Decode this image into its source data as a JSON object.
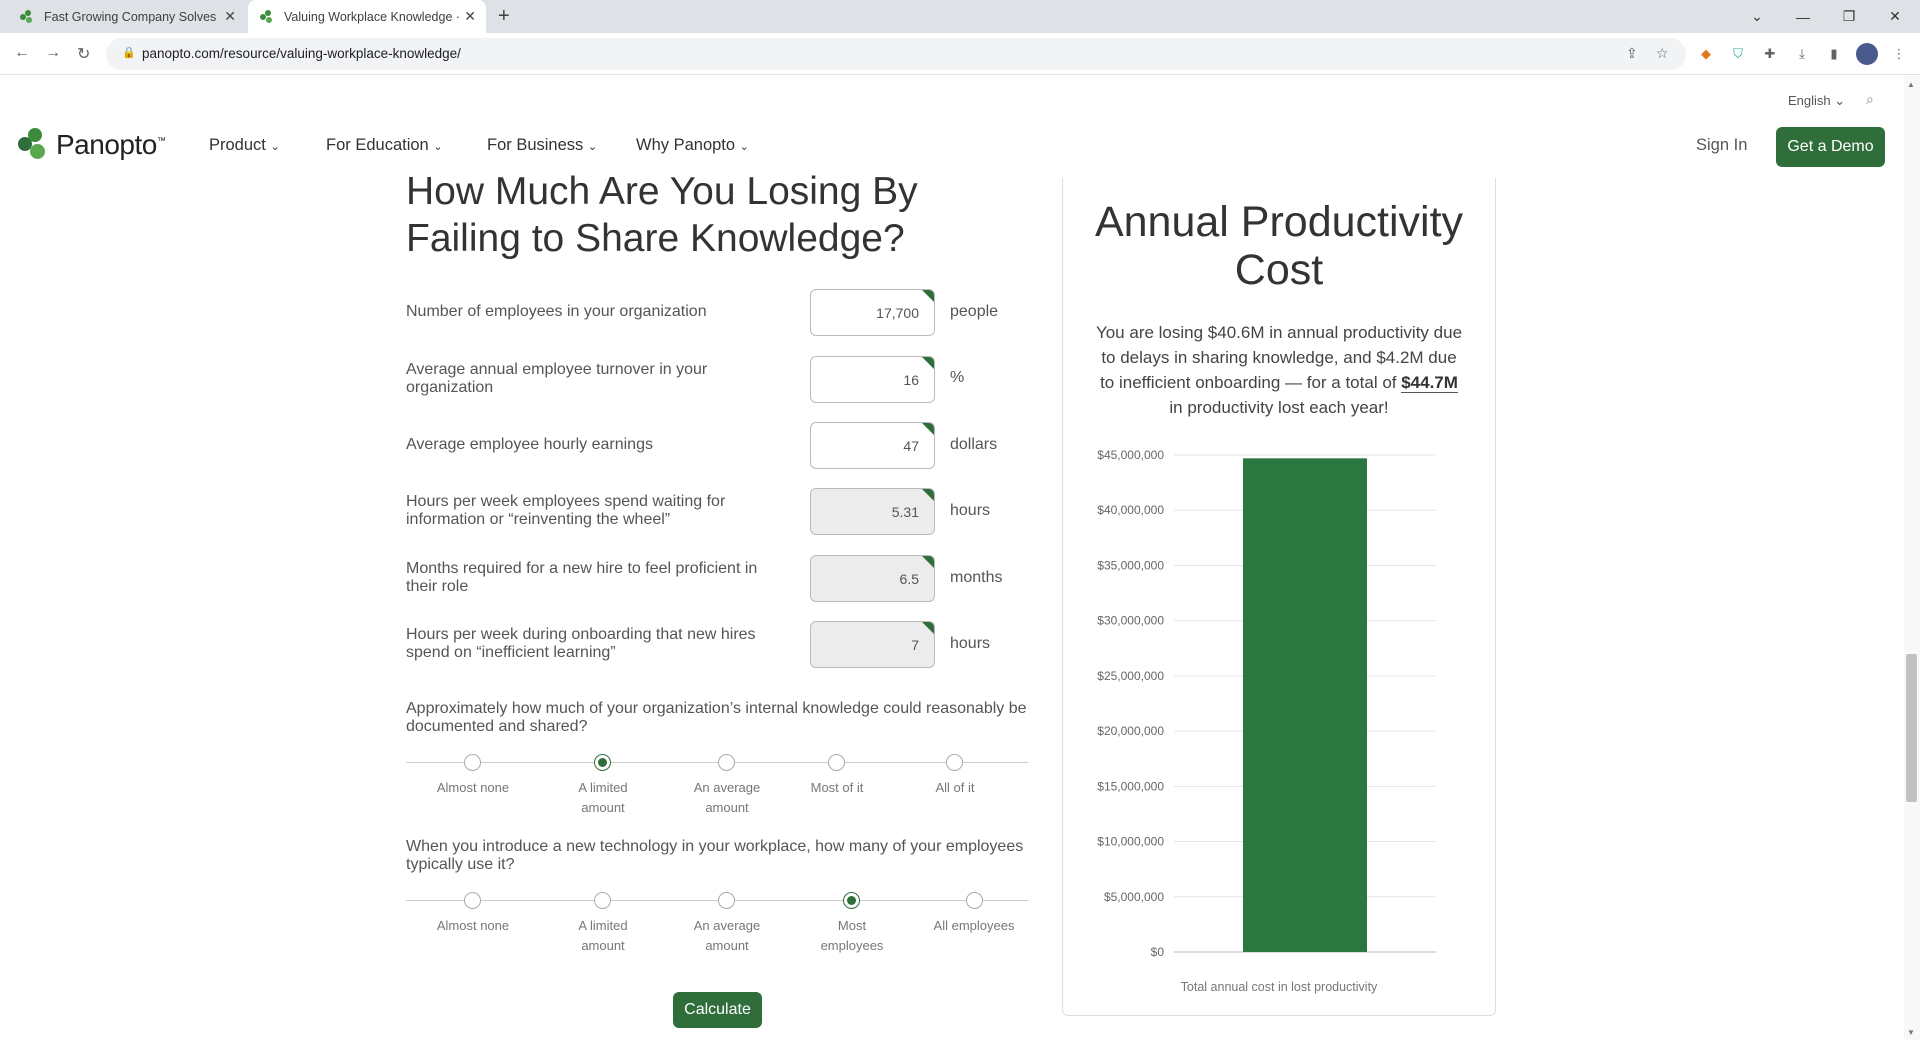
{
  "browser": {
    "tabs": [
      {
        "title": "Fast Growing Company Solves G",
        "active": false
      },
      {
        "title": "Valuing Workplace Knowledge ·",
        "active": true
      }
    ],
    "url": "panopto.com/resource/valuing-workplace-knowledge/"
  },
  "header": {
    "language": "English",
    "logo": "Panopto",
    "nav": [
      "Product",
      "For Education",
      "For Business",
      "Why Panopto"
    ],
    "sign_in": "Sign In",
    "demo_button": "Get a Demo"
  },
  "calculator": {
    "title": "How Much Are You Losing By Failing to Share Knowledge?",
    "fields": [
      {
        "label": "Number of employees in your organization",
        "value": "17,700",
        "unit": "people",
        "readonly": false
      },
      {
        "label": "Average annual employee turnover in your organization",
        "value": "16",
        "unit": "%",
        "readonly": false
      },
      {
        "label": "Average employee hourly earnings",
        "value": "47",
        "unit": "dollars",
        "readonly": false
      },
      {
        "label": "Hours per week employees spend waiting for information or “reinventing the wheel”",
        "value": "5.31",
        "unit": "hours",
        "readonly": true
      },
      {
        "label": "Months required for a new hire to feel proficient in their role",
        "value": "6.5",
        "unit": "months",
        "readonly": true
      },
      {
        "label": "Hours per week during onboarding that new hires spend on “inefficient learning”",
        "value": "7",
        "unit": "hours",
        "readonly": true
      }
    ],
    "radio_questions": [
      {
        "question": "Approximately how much of your organization’s internal knowledge could reasonably be documented and shared?",
        "options": [
          "Almost none",
          "A limited amount",
          "An average amount",
          "Most of it",
          "All of it"
        ],
        "selected": 1
      },
      {
        "question": "When you introduce a new technology in your workplace, how many of your employees typically use it?",
        "options": [
          "Almost none",
          "A limited amount",
          "An average amount",
          "Most employees",
          "All employees"
        ],
        "selected": 3
      }
    ],
    "calculate_button": "Calculate"
  },
  "results": {
    "title": "Annual Productivity Cost",
    "summary_pre": "You are losing $40.6M in annual productivity due to delays in sharing knowledge, and $4.2M due to inefficient onboarding — for a total of ",
    "summary_total": "$44.7M",
    "summary_post": " in productivity lost each year!",
    "colors": {
      "accent": "#2f6e3b",
      "bar": "#2b7740"
    }
  },
  "chart_data": {
    "type": "bar",
    "categories": [
      ""
    ],
    "values": [
      44700000
    ],
    "ylim": [
      0,
      45000000
    ],
    "yticks": [
      "$0",
      "$5,000,000",
      "$10,000,000",
      "$15,000,000",
      "$20,000,000",
      "$25,000,000",
      "$30,000,000",
      "$35,000,000",
      "$40,000,000",
      "$45,000,000"
    ],
    "xlabel": "Total annual cost in lost productivity",
    "grid": true
  }
}
